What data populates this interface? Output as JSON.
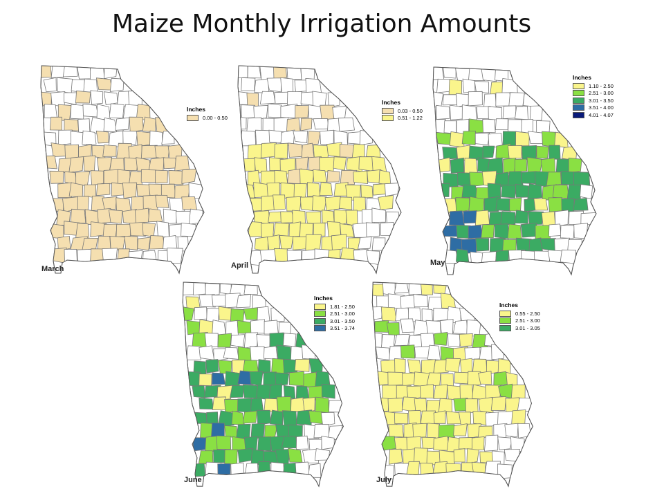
{
  "title": "Maize Monthly Irrigation Amounts",
  "colors": {
    "tan": "#F5DFB0",
    "yellow": "#FAF58C",
    "light_green": "#8AE043",
    "green": "#3BAB63",
    "blue": "#2E6DA4",
    "navy": "#0A1A7A",
    "blank": "#FFFFFF",
    "border": "#777777"
  },
  "maps": [
    {
      "month": "March",
      "legend_title": "Inches",
      "legend": [
        {
          "range": "0.00 - 0.50",
          "color": "#F5DFB0"
        }
      ],
      "fill_scheme": "tan"
    },
    {
      "month": "April",
      "legend_title": "Inches",
      "legend": [
        {
          "range": "0.03 - 0.50",
          "color": "#F5DFB0"
        },
        {
          "range": "0.51 - 1.22",
          "color": "#FAF58C"
        }
      ],
      "fill_scheme": "yellow"
    },
    {
      "month": "May",
      "legend_title": "Inches",
      "legend": [
        {
          "range": "1.10 - 2.50",
          "color": "#FAF58C"
        },
        {
          "range": "2.51 - 3.00",
          "color": "#8AE043"
        },
        {
          "range": "3.01 - 3.50",
          "color": "#3BAB63"
        },
        {
          "range": "3.51 - 4.00",
          "color": "#2E6DA4"
        },
        {
          "range": "4.01 - 4.07",
          "color": "#0A1A7A"
        }
      ],
      "fill_scheme": "green"
    },
    {
      "month": "June",
      "legend_title": "Inches",
      "legend": [
        {
          "range": "1.81 - 2.50",
          "color": "#FAF58C"
        },
        {
          "range": "2.51 - 3.00",
          "color": "#8AE043"
        },
        {
          "range": "3.01 - 3.50",
          "color": "#3BAB63"
        },
        {
          "range": "3.51 - 3.74",
          "color": "#2E6DA4"
        }
      ],
      "fill_scheme": "green"
    },
    {
      "month": "July",
      "legend_title": "Inches",
      "legend": [
        {
          "range": "0.55 - 2.50",
          "color": "#FAF58C"
        },
        {
          "range": "2.51 - 3.00",
          "color": "#8AE043"
        },
        {
          "range": "3.01 - 3.05",
          "color": "#3BAB63"
        }
      ],
      "fill_scheme": "yellow"
    }
  ]
}
